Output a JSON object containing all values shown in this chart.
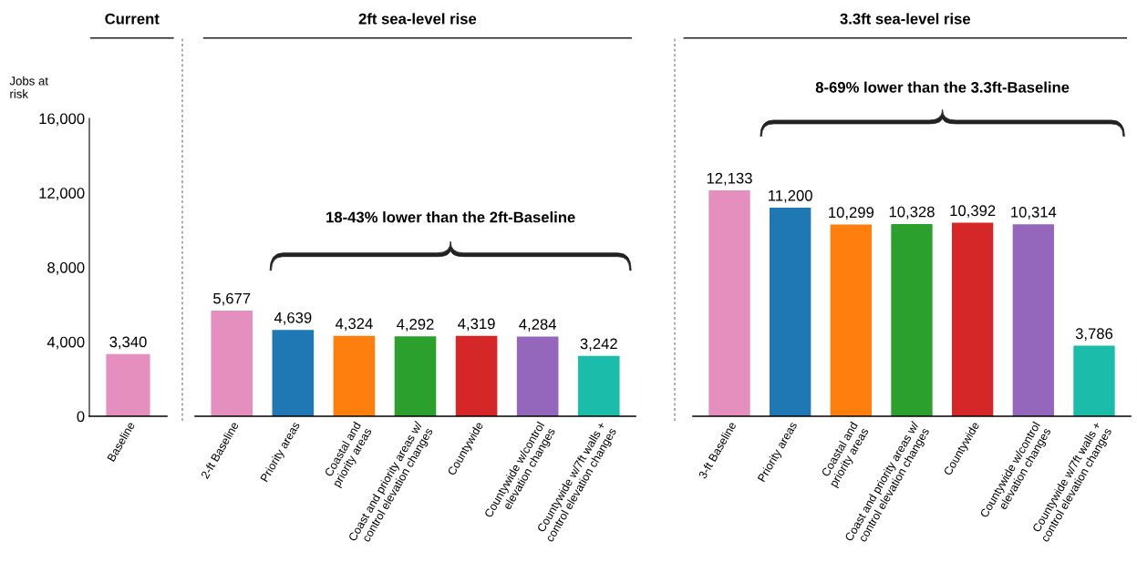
{
  "chart_data": [
    {
      "type": "bar",
      "title": "Current",
      "ylabel": "Jobs at\nrisk",
      "categories": [
        "Baseline"
      ],
      "values": [
        3340
      ],
      "colors": [
        "#e48fbe"
      ],
      "ylim": [
        0,
        16000
      ],
      "yticks": [
        0,
        {
          "value": 4000,
          "label": "4,000"
        },
        {
          "value": 8000,
          "label": "8,000"
        },
        {
          "value": 12000,
          "label": "12,000"
        },
        {
          "value": 16000,
          "label": "16,000"
        }
      ],
      "value_labels": [
        "3,340"
      ],
      "grid": false
    },
    {
      "type": "bar",
      "title": "2ft sea-level rise",
      "categories": [
        "2-ft Baseline",
        "Priority areas",
        "Coastal and\npriority areas",
        "Coast and priority areas w/\ncontrol elevation changes",
        "Countywide",
        "Countywide w/control\nelevation changes",
        "Countywide w/7ft walls +\ncontrol elevation changes"
      ],
      "values": [
        5677,
        4639,
        4324,
        4292,
        4319,
        4284,
        3242
      ],
      "colors": [
        "#e48fbe",
        "#1f77b4",
        "#ff7f0e",
        "#2ca02c",
        "#d62728",
        "#9467bd",
        "#1bbcaa"
      ],
      "ylim": [
        0,
        16000
      ],
      "tick_labels": "x",
      "value_labels": [
        "5,677",
        "4,639",
        "4,324",
        "4,292",
        "4,319",
        "4,284",
        "3,242"
      ],
      "annotations": [
        "18-43% lower than the 2ft-Baseline"
      ],
      "grid": false
    },
    {
      "type": "bar",
      "title": "3.3ft sea-level rise",
      "categories": [
        "3-ft Baseline",
        "Priority areas",
        "Coastal and\npriority areas",
        "Coast and priority areas w/\ncontrol elevation changes",
        "Countywide",
        "Countywide w/control\nelevation changes",
        "Countywide w/7ft walls +\ncontrol elevation changes"
      ],
      "values": [
        12133,
        11200,
        10299,
        10328,
        10392,
        10314,
        3786
      ],
      "colors": [
        "#e48fbe",
        "#1f77b4",
        "#ff7f0e",
        "#2ca02c",
        "#d62728",
        "#9467bd",
        "#1bbcaa"
      ],
      "ylim": [
        0,
        16000
      ],
      "tick_labels": "x",
      "value_labels": [
        "12,133",
        "11,200",
        "10,299",
        "10,328",
        "10,392",
        "10,314",
        "3,786"
      ],
      "annotations": [
        "8-69% lower than the 3.3ft-Baseline"
      ],
      "grid": false
    }
  ]
}
